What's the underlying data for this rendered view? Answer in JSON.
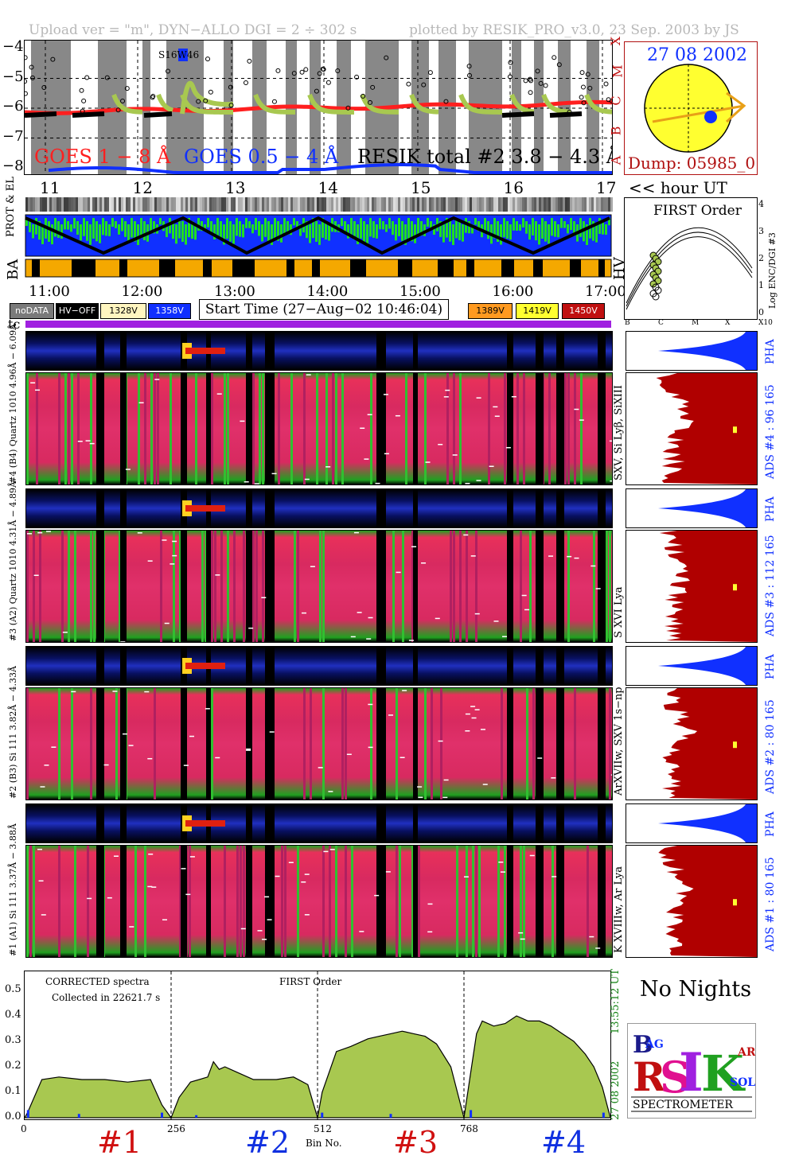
{
  "header": {
    "upload": "Upload ver = \"m\", DYN−ALLO DGI =   2 ÷ 302 s",
    "plotted": "plotted by RESIK_PRO_v3.0, 23 Sep. 2003 by JS"
  },
  "goes_panel": {
    "y_ticks": [
      "−4",
      "−5",
      "−6",
      "−7",
      "−8"
    ],
    "class_letters": [
      "X",
      "M",
      "C",
      "B",
      "A"
    ],
    "legend_goes_long": "GOES 1 − 8 Å",
    "legend_goes_short": "GOES 0.5 − 4 Å",
    "legend_resik": "RESIK total #2  3.8 − 4.3 Å",
    "flare_label": "S16W46",
    "colors": {
      "goes_long": "#ff1f1f",
      "goes_short": "#1030ff",
      "resik": "#a8c850",
      "night": "#888888"
    }
  },
  "hour_axis": {
    "top_ticks": [
      "11",
      "12",
      "13",
      "14",
      "15",
      "16",
      "17"
    ],
    "unit": "<< hour UT",
    "bottom_ticks": [
      "11:00",
      "12:00",
      "13:00",
      "14:00",
      "15:00",
      "16:00",
      "17:00"
    ]
  },
  "sun_panel": {
    "date": "27 08 2002",
    "dump": "Dump: 05985_0"
  },
  "strip_labels": {
    "prot_el": "PROT & EL",
    "ba": "BA",
    "hv": "HV"
  },
  "first_order_panel": {
    "title": "FIRST Order",
    "ylabel": "Log ENC/DGI #3",
    "y_ticks": [
      "0",
      "1",
      "2",
      "3",
      "4"
    ],
    "x_ticks": [
      "B",
      "C",
      "M",
      "X",
      "X10"
    ]
  },
  "legend": {
    "items": [
      {
        "label": "noDATA",
        "bg": "#7a7a7a",
        "fg": "#ffffff"
      },
      {
        "label": "HV−OFF",
        "bg": "#000000",
        "fg": "#ffffff"
      },
      {
        "label": "1328V",
        "bg": "#fff6c0",
        "fg": "#000000"
      },
      {
        "label": "1358V",
        "bg": "#1030ff",
        "fg": "#ffffff"
      },
      {
        "label": "1389V",
        "bg": "#ff9a20",
        "fg": "#000000"
      },
      {
        "label": "1419V",
        "bg": "#ffff30",
        "fg": "#000000"
      },
      {
        "label": "1450V",
        "bg": "#c01010",
        "fg": "#ffffff"
      }
    ],
    "start_time": "Start Time (27−Aug−02 10:46:04)"
  },
  "tc_label": "tc",
  "channels": [
    {
      "pha_label": "#4 (B4) Quartz 1010  4.96Å − 6.09Å",
      "spec_label": "#4 (B4) Quartz 1010  4.96Å − 6.09Å",
      "lines": "SXV, Si Lyβ, SiXIII",
      "ads": "ADS #4 :   96 165",
      "pha": "PHA"
    },
    {
      "pha_label": "#3 (A2) Quartz 1010  4.31Å − 4.89Å",
      "spec_label": "#3 (A2) Quartz 1010  4.31Å − 4.89Å",
      "lines": "S XVI Lya",
      "ads": "ADS #3 :   112 165",
      "pha": "PHA"
    },
    {
      "pha_label": "#2 (B3) Si 111  3.82Å − 4.33Å",
      "spec_label": "#2 (B3) Si 111  3.82Å − 4.33Å",
      "lines": "ArXVIIw, SXV 1s−np",
      "ads": "ADS #2 :   80 165",
      "pha": "PHA"
    },
    {
      "pha_label": "#1 (A1) Si 111  3.37Å − 3.88Å",
      "spec_label": "#1 (A1) Si 111  3.37Å − 3.88Å",
      "lines": "K XVIIIw, Ar Lya",
      "ads": "ADS #1 :   80 165",
      "pha": "PHA"
    }
  ],
  "spectrum_panel": {
    "note1": "CORRECTED spectra",
    "note2": "Collected in 22621.7 s",
    "note3": "FIRST Order",
    "xlabel": "Bin No.",
    "right_date": "27 08 2002",
    "right_time": "13:55:12 UT",
    "channel_labels": [
      {
        "label": "#1",
        "color": "#d01010"
      },
      {
        "label": "#2",
        "color": "#1030e0"
      },
      {
        "label": "#3",
        "color": "#d01010"
      },
      {
        "label": "#4",
        "color": "#1030e0"
      }
    ]
  },
  "chart_data": {
    "type": "area",
    "title": "",
    "xlabel": "Bin No.",
    "ylabel": "",
    "xlim": [
      0,
      1024
    ],
    "ylim": [
      0,
      0.55
    ],
    "x_ticks": [
      "0",
      "256",
      "512",
      "768"
    ],
    "y_ticks": [
      "0.0",
      "0.1",
      "0.2",
      "0.3",
      "0.4",
      "0.5"
    ],
    "series": [
      {
        "bins": [
          0,
          256
        ],
        "x": [
          5,
          30,
          60,
          100,
          140,
          180,
          220,
          240
        ],
        "values": [
          0.02,
          0.15,
          0.16,
          0.15,
          0.15,
          0.14,
          0.15,
          0.05
        ]
      },
      {
        "bins": [
          256,
          512
        ],
        "x": [
          270,
          290,
          320,
          330,
          340,
          350,
          370,
          400,
          440,
          470,
          495
        ],
        "values": [
          0.08,
          0.14,
          0.16,
          0.22,
          0.19,
          0.2,
          0.18,
          0.15,
          0.15,
          0.16,
          0.13
        ]
      },
      {
        "bins": [
          512,
          768
        ],
        "x": [
          520,
          545,
          570,
          600,
          620,
          640,
          660,
          680,
          700,
          720,
          745
        ],
        "values": [
          0.1,
          0.26,
          0.28,
          0.31,
          0.32,
          0.33,
          0.34,
          0.33,
          0.32,
          0.29,
          0.2
        ]
      },
      {
        "bins": [
          768,
          1024
        ],
        "x": [
          780,
          790,
          800,
          820,
          840,
          860,
          880,
          900,
          920,
          940,
          960,
          980,
          995,
          1010
        ],
        "values": [
          0.18,
          0.33,
          0.38,
          0.36,
          0.37,
          0.4,
          0.38,
          0.38,
          0.36,
          0.33,
          0.3,
          0.25,
          0.2,
          0.12
        ]
      }
    ]
  },
  "no_nights": "No Nights",
  "logo": {
    "text": "SPECTROMETER",
    "letters": [
      "B",
      "R",
      "AG",
      "S",
      "I",
      "K",
      "SOL",
      "AR"
    ]
  }
}
